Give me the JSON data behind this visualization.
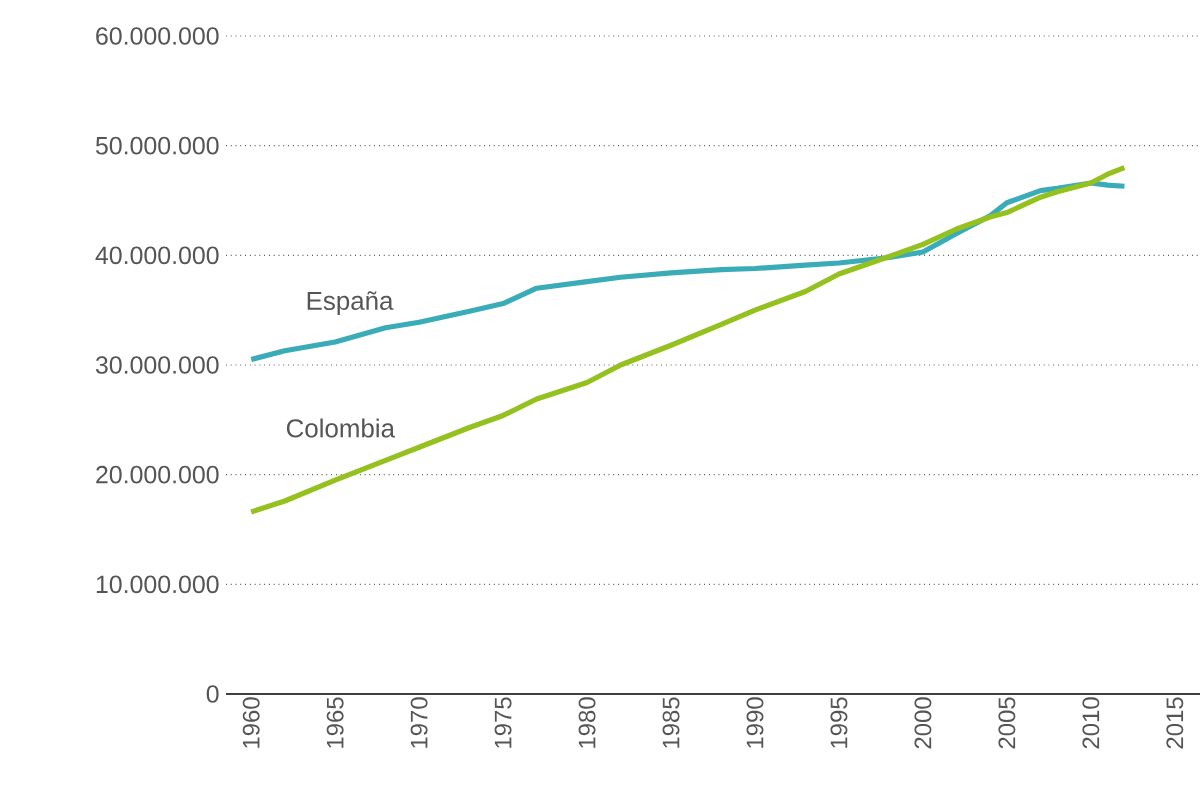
{
  "chart_data": {
    "type": "line",
    "x": [
      1960,
      1962,
      1965,
      1968,
      1970,
      1973,
      1975,
      1977,
      1980,
      1982,
      1985,
      1988,
      1990,
      1993,
      1995,
      1998,
      2000,
      2002,
      2004,
      2005,
      2007,
      2008,
      2010,
      2011,
      2012
    ],
    "series": [
      {
        "name": "España",
        "color": "#3aacb8",
        "values": [
          30500000,
          31300000,
          32100000,
          33400000,
          33900000,
          34900000,
          35600000,
          37000000,
          37600000,
          38000000,
          38400000,
          38700000,
          38800000,
          39100000,
          39300000,
          39800000,
          40300000,
          42000000,
          43600000,
          44800000,
          45900000,
          46100000,
          46600000,
          46400000,
          46300000
        ]
      },
      {
        "name": "Colombia",
        "color": "#95c11f",
        "values": [
          16600000,
          17600000,
          19500000,
          21300000,
          22500000,
          24300000,
          25400000,
          26900000,
          28400000,
          30000000,
          31800000,
          33700000,
          35000000,
          36700000,
          38300000,
          39900000,
          41000000,
          42400000,
          43500000,
          43900000,
          45300000,
          45800000,
          46600000,
          47400000,
          48000000
        ]
      }
    ],
    "xlim": [
      1958.5,
      2016.5
    ],
    "ylim": [
      0,
      60000000
    ],
    "xticks": [
      1960,
      1965,
      1970,
      1975,
      1980,
      1985,
      1990,
      1995,
      2000,
      2005,
      2010,
      2015
    ],
    "yticks": [
      {
        "value": 0,
        "label": "0"
      },
      {
        "value": 10000000,
        "label": "10.000.000"
      },
      {
        "value": 20000000,
        "label": "20.000.000"
      },
      {
        "value": 30000000,
        "label": "30.000.000"
      },
      {
        "value": 40000000,
        "label": "40.000.000"
      },
      {
        "value": 50000000,
        "label": "50.000.000"
      },
      {
        "value": 60000000,
        "label": "60.000.000"
      }
    ],
    "grid": "y",
    "legend": false,
    "marker": "none",
    "line_style": "solid"
  }
}
